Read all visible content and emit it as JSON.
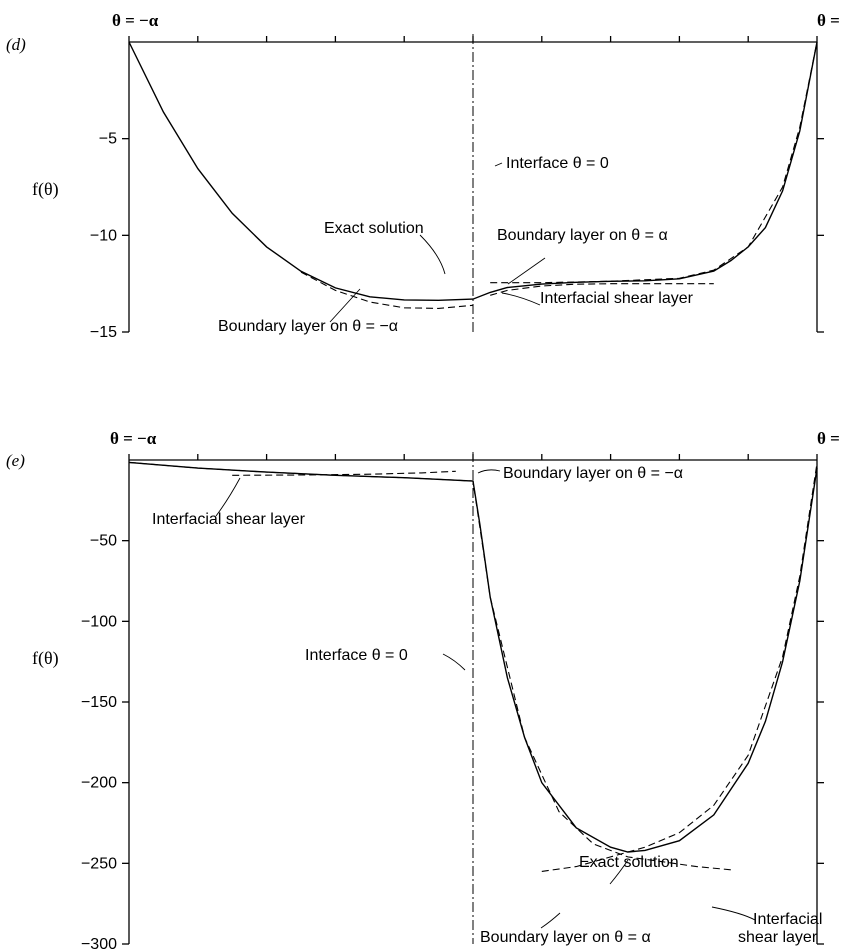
{
  "chart_data": [
    {
      "panel": "(d)",
      "type": "line",
      "ylabel": "f(θ)",
      "left_end_label": "θ = −α",
      "right_end_label": "θ = α",
      "x_range": [
        "−α",
        "α"
      ],
      "ylim": [
        -15,
        0
      ],
      "y_ticks": [
        {
          "value": -5,
          "label": "−5"
        },
        {
          "value": -10,
          "label": "−10"
        },
        {
          "value": -15,
          "label": "−15"
        }
      ],
      "grid": false,
      "series": [
        {
          "name": "Exact solution",
          "style": "solid",
          "points": [
            [
              -1,
              0
            ],
            [
              -0.9,
              -3.62
            ],
            [
              -0.8,
              -6.55
            ],
            [
              -0.7,
              -8.86
            ],
            [
              -0.6,
              -10.6
            ],
            [
              -0.5,
              -11.86
            ],
            [
              -0.4,
              -12.72
            ],
            [
              -0.3,
              -13.18
            ],
            [
              -0.2,
              -13.34
            ],
            [
              -0.1,
              -13.36
            ],
            [
              0,
              -13.3
            ],
            [
              0.05,
              -12.95
            ],
            [
              0.1,
              -12.7
            ],
            [
              0.2,
              -12.52
            ],
            [
              0.3,
              -12.43
            ],
            [
              0.4,
              -12.38
            ],
            [
              0.5,
              -12.35
            ],
            [
              0.6,
              -12.25
            ],
            [
              0.7,
              -11.85
            ],
            [
              0.75,
              -11.3
            ],
            [
              0.8,
              -10.6
            ],
            [
              0.85,
              -9.6
            ],
            [
              0.9,
              -7.7
            ],
            [
              0.95,
              -4.6
            ],
            [
              1,
              0
            ]
          ]
        },
        {
          "name": "Boundary layer on θ = −α",
          "style": "dashed",
          "points": [
            [
              -0.5,
              -11.9
            ],
            [
              -0.4,
              -12.85
            ],
            [
              -0.3,
              -13.45
            ],
            [
              -0.2,
              -13.75
            ],
            [
              -0.1,
              -13.78
            ],
            [
              0,
              -13.62
            ]
          ]
        },
        {
          "name": "Boundary layer on θ = α",
          "style": "dashed",
          "points": [
            [
              0.05,
              -12.45
            ],
            [
              0.2,
              -12.45
            ],
            [
              0.4,
              -12.37
            ],
            [
              0.6,
              -12.22
            ],
            [
              0.7,
              -11.8
            ],
            [
              0.8,
              -10.6
            ],
            [
              0.9,
              -7.5
            ],
            [
              0.95,
              -4.4
            ],
            [
              1,
              0
            ]
          ]
        },
        {
          "name": "Interfacial shear layer",
          "style": "dashed",
          "points": [
            [
              0.05,
              -13.1
            ],
            [
              0.1,
              -12.85
            ],
            [
              0.2,
              -12.62
            ],
            [
              0.3,
              -12.53
            ],
            [
              0.4,
              -12.5
            ],
            [
              0.5,
              -12.5
            ],
            [
              0.6,
              -12.5
            ],
            [
              0.7,
              -12.5
            ]
          ]
        }
      ],
      "annotations": [
        "Interface θ = 0",
        "Exact solution",
        "Boundary layer on θ = α",
        "Interfacial shear layer",
        "Boundary layer on θ = −α"
      ]
    },
    {
      "panel": "(e)",
      "type": "line",
      "ylabel": "f(θ)",
      "left_end_label": "θ = −α",
      "right_end_label": "θ = α",
      "x_range": [
        "−α",
        "α"
      ],
      "ylim": [
        -300,
        0
      ],
      "y_ticks": [
        {
          "value": -50,
          "label": "−50"
        },
        {
          "value": -100,
          "label": "−100"
        },
        {
          "value": -150,
          "label": "−150"
        },
        {
          "value": -200,
          "label": "−200"
        },
        {
          "value": -250,
          "label": "−250"
        },
        {
          "value": -300,
          "label": "−300"
        }
      ],
      "grid": false,
      "series": [
        {
          "name": "Exact solution",
          "style": "solid",
          "points": [
            [
              -1,
              -1.5
            ],
            [
              -0.8,
              -5
            ],
            [
              -0.6,
              -7.5
            ],
            [
              -0.4,
              -9.5
            ],
            [
              -0.2,
              -11
            ],
            [
              0,
              -13
            ],
            [
              0.02,
              -40
            ],
            [
              0.05,
              -85
            ],
            [
              0.1,
              -135
            ],
            [
              0.15,
              -172
            ],
            [
              0.2,
              -200
            ],
            [
              0.3,
              -228
            ],
            [
              0.4,
              -240
            ],
            [
              0.45,
              -243
            ],
            [
              0.5,
              -242
            ],
            [
              0.6,
              -236
            ],
            [
              0.7,
              -220
            ],
            [
              0.8,
              -188
            ],
            [
              0.85,
              -162
            ],
            [
              0.9,
              -125
            ],
            [
              0.95,
              -75
            ],
            [
              1,
              -5
            ]
          ]
        },
        {
          "name": "Boundary layer on θ = −α",
          "style": "dashed",
          "points": [
            [
              -0.7,
              -9.5
            ],
            [
              -0.5,
              -9.3
            ],
            [
              -0.3,
              -8.8
            ],
            [
              -0.15,
              -8
            ],
            [
              -0.05,
              -7
            ]
          ]
        },
        {
          "name": "Interfacial shear layer",
          "style": "dashed",
          "points": [
            [
              -1,
              -1.5
            ],
            [
              -0.8,
              -5
            ],
            [
              -0.6,
              -7.5
            ],
            [
              -0.4,
              -9.5
            ],
            [
              -0.2,
              -11
            ],
            [
              0,
              -13
            ],
            [
              0.05,
              -85
            ],
            [
              0.15,
              -172
            ],
            [
              0.25,
              -218
            ],
            [
              0.35,
              -238
            ],
            [
              0.45,
              -246
            ],
            [
              0.55,
              -249
            ],
            [
              0.65,
              -252
            ],
            [
              0.75,
              -254
            ]
          ]
        },
        {
          "name": "Boundary layer on θ = α",
          "style": "dashed",
          "points": [
            [
              0.2,
              -255
            ],
            [
              0.3,
              -252
            ],
            [
              0.4,
              -246
            ],
            [
              0.5,
              -240
            ],
            [
              0.6,
              -231
            ],
            [
              0.7,
              -214
            ],
            [
              0.8,
              -183
            ],
            [
              0.9,
              -122
            ],
            [
              0.95,
              -72
            ],
            [
              1,
              -2
            ]
          ]
        }
      ],
      "annotations": [
        "Interfacial shear layer",
        "Boundary layer on θ = −α",
        "Interface θ = 0",
        "Exact solution",
        "Boundary layer on θ = α",
        "Interfacial",
        "shear layer"
      ]
    }
  ]
}
